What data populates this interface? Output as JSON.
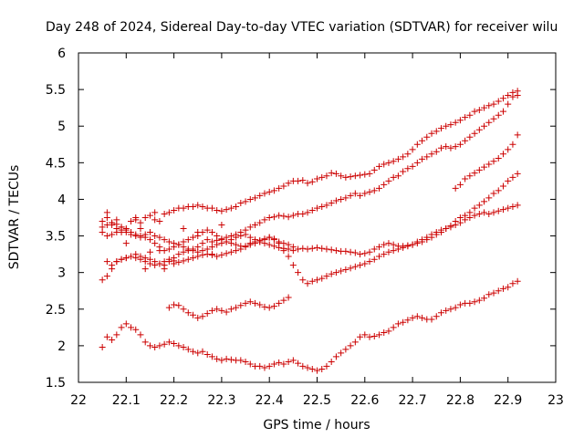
{
  "chart_data": {
    "type": "scatter",
    "title": "Day 248 of 2024, Sidereal Day-to-day VTEC variation (SDTVAR) for receiver wilu",
    "xlabel": "GPS time / hours",
    "ylabel": "SDTVAR / TECUs",
    "xlim": [
      22,
      23
    ],
    "ylim": [
      1.5,
      6
    ],
    "xticks": [
      "22",
      "22.1",
      "22.2",
      "22.3",
      "22.4",
      "22.5",
      "22.6",
      "22.7",
      "22.8",
      "22.9",
      "23"
    ],
    "yticks": [
      "1.5",
      "2",
      "2.5",
      "3",
      "3.5",
      "4",
      "4.5",
      "5",
      "5.5",
      "6"
    ],
    "grid": false,
    "marker_color": "#cc0000",
    "series": [
      {
        "x": [
          22.05,
          22.06,
          22.07,
          22.08,
          22.09,
          22.1,
          22.11,
          22.12,
          22.13,
          22.14,
          22.15,
          22.16,
          22.17,
          22.18,
          22.19,
          22.2,
          22.21,
          22.22,
          22.23,
          22.24,
          22.25,
          22.26,
          22.27,
          22.28,
          22.29,
          22.3,
          22.31,
          22.32,
          22.33,
          22.34,
          22.35,
          22.36,
          22.37,
          22.38,
          22.39,
          22.4,
          22.41,
          22.42,
          22.43,
          22.44,
          22.45,
          22.46,
          22.47,
          22.48,
          22.49,
          22.5,
          22.51,
          22.52,
          22.53,
          22.54,
          22.55,
          22.56,
          22.57,
          22.58,
          22.59,
          22.6,
          22.61,
          22.62,
          22.63,
          22.64,
          22.65,
          22.66,
          22.67,
          22.68,
          22.69,
          22.7,
          22.71,
          22.72,
          22.73,
          22.74,
          22.75,
          22.76,
          22.77,
          22.78,
          22.79,
          22.8,
          22.81,
          22.82,
          22.83,
          22.84,
          22.85,
          22.86,
          22.87,
          22.88,
          22.89,
          22.9,
          22.91,
          22.92
        ],
        "y": [
          3.7,
          3.75,
          3.65,
          3.6,
          3.55,
          3.6,
          3.7,
          3.72,
          3.68,
          3.75,
          3.78,
          3.72,
          3.7,
          3.8,
          3.82,
          3.85,
          3.88,
          3.88,
          3.9,
          3.9,
          3.92,
          3.9,
          3.88,
          3.88,
          3.85,
          3.84,
          3.86,
          3.88,
          3.9,
          3.95,
          3.97,
          4.0,
          4.02,
          4.05,
          4.08,
          4.1,
          4.12,
          4.15,
          4.18,
          4.22,
          4.25,
          4.25,
          4.26,
          4.22,
          4.24,
          4.28,
          4.3,
          4.32,
          4.36,
          4.35,
          4.32,
          4.3,
          4.31,
          4.32,
          4.33,
          4.34,
          4.35,
          4.4,
          4.45,
          4.48,
          4.5,
          4.52,
          4.55,
          4.58,
          4.62,
          4.68,
          4.75,
          4.8,
          4.85,
          4.9,
          4.93,
          4.97,
          5.0,
          5.02,
          5.05,
          5.08,
          5.12,
          5.15,
          5.2,
          5.22,
          5.25,
          5.28,
          5.3,
          5.34,
          5.38,
          5.42,
          5.46,
          5.48
        ]
      },
      {
        "x": [
          22.06,
          22.07,
          22.08,
          22.09,
          22.1,
          22.11,
          22.12,
          22.13,
          22.14,
          22.15,
          22.16,
          22.17,
          22.18,
          22.19,
          22.2,
          22.21,
          22.22,
          22.23,
          22.24,
          22.25,
          22.26,
          22.27,
          22.28,
          22.29,
          22.3,
          22.31,
          22.32,
          22.33,
          22.34,
          22.35,
          22.36,
          22.37,
          22.38,
          22.39,
          22.4,
          22.41,
          22.42,
          22.43,
          22.44,
          22.45,
          22.46,
          22.47,
          22.48,
          22.49,
          22.5,
          22.51,
          22.52,
          22.53,
          22.54,
          22.55,
          22.56,
          22.57,
          22.58,
          22.59,
          22.6,
          22.61,
          22.62,
          22.63,
          22.64,
          22.65,
          22.66,
          22.67,
          22.68,
          22.69,
          22.7,
          22.71,
          22.72,
          22.73,
          22.74,
          22.75,
          22.76,
          22.77,
          22.78,
          22.79,
          22.8,
          22.81,
          22.82,
          22.83,
          22.84,
          22.85,
          22.86,
          22.87,
          22.88,
          22.89,
          22.9,
          22.91,
          22.92
        ],
        "y": [
          3.15,
          3.1,
          3.15,
          3.18,
          3.2,
          3.22,
          3.25,
          3.22,
          3.2,
          3.18,
          3.15,
          3.12,
          3.1,
          3.15,
          3.2,
          3.25,
          3.28,
          3.3,
          3.32,
          3.35,
          3.4,
          3.45,
          3.42,
          3.44,
          3.46,
          3.48,
          3.5,
          3.52,
          3.55,
          3.58,
          3.62,
          3.65,
          3.68,
          3.72,
          3.75,
          3.76,
          3.78,
          3.77,
          3.76,
          3.78,
          3.8,
          3.8,
          3.82,
          3.85,
          3.88,
          3.9,
          3.92,
          3.95,
          3.98,
          4.0,
          4.02,
          4.05,
          4.08,
          4.05,
          4.08,
          4.1,
          4.12,
          4.15,
          4.2,
          4.25,
          4.3,
          4.32,
          4.38,
          4.42,
          4.45,
          4.5,
          4.55,
          4.58,
          4.62,
          4.65,
          4.7,
          4.72,
          4.7,
          4.72,
          4.75,
          4.8,
          4.85,
          4.9,
          4.95,
          5.0,
          5.05,
          5.1,
          5.15,
          5.2,
          5.3,
          5.4,
          5.42
        ]
      },
      {
        "x": [
          22.79,
          22.8,
          22.81,
          22.82,
          22.83,
          22.84,
          22.85,
          22.86,
          22.87,
          22.88,
          22.89,
          22.9,
          22.91,
          22.92
        ],
        "y": [
          4.15,
          4.2,
          4.28,
          4.32,
          4.36,
          4.4,
          4.44,
          4.48,
          4.52,
          4.56,
          4.62,
          4.68,
          4.75,
          4.88
        ]
      },
      {
        "x": [
          22.05,
          22.06,
          22.07,
          22.08,
          22.09,
          22.1,
          22.11,
          22.12,
          22.13,
          22.14,
          22.15,
          22.16,
          22.17,
          22.18,
          22.19,
          22.2,
          22.21,
          22.22,
          22.23,
          22.24,
          22.25,
          22.26,
          22.27,
          22.28,
          22.29,
          22.3,
          22.31,
          22.32,
          22.33,
          22.34,
          22.35,
          22.36,
          22.37,
          22.38,
          22.39,
          22.4,
          22.41,
          22.42,
          22.43,
          22.44,
          22.45,
          22.46,
          22.47,
          22.48,
          22.49,
          22.5,
          22.51,
          22.52,
          22.53,
          22.54,
          22.55,
          22.56,
          22.57,
          22.58,
          22.59,
          22.6,
          22.61,
          22.62,
          22.63,
          22.64,
          22.65,
          22.66,
          22.67,
          22.68,
          22.69,
          22.7,
          22.71,
          22.72,
          22.73,
          22.74,
          22.75,
          22.76,
          22.77,
          22.78,
          22.79,
          22.8,
          22.81,
          22.82,
          22.83,
          22.84,
          22.85,
          22.86,
          22.87,
          22.88,
          22.89,
          22.9,
          22.91,
          22.92
        ],
        "y": [
          3.62,
          3.65,
          3.68,
          3.66,
          3.62,
          3.58,
          3.55,
          3.52,
          3.5,
          3.48,
          3.45,
          3.4,
          3.35,
          3.3,
          3.32,
          3.35,
          3.38,
          3.42,
          3.45,
          3.48,
          3.5,
          3.55,
          3.58,
          3.55,
          3.5,
          3.45,
          3.42,
          3.4,
          3.38,
          3.36,
          3.35,
          3.38,
          3.4,
          3.42,
          3.4,
          3.38,
          3.36,
          3.34,
          3.33,
          3.32,
          3.3,
          3.32,
          3.33,
          3.32,
          3.33,
          3.34,
          3.33,
          3.32,
          3.31,
          3.3,
          3.29,
          3.29,
          3.28,
          3.27,
          3.25,
          3.26,
          3.28,
          3.32,
          3.35,
          3.38,
          3.4,
          3.38,
          3.36,
          3.36,
          3.37,
          3.38,
          3.4,
          3.42,
          3.45,
          3.48,
          3.52,
          3.55,
          3.6,
          3.64,
          3.7,
          3.75,
          3.78,
          3.82,
          3.88,
          3.92,
          3.97,
          4.02,
          4.08,
          4.12,
          4.18,
          4.25,
          4.3,
          4.35
        ]
      },
      {
        "x": [
          22.05,
          22.06,
          22.07,
          22.08,
          22.09,
          22.1,
          22.11,
          22.12,
          22.13,
          22.14,
          22.15,
          22.16,
          22.17,
          22.18,
          22.19,
          22.2,
          22.21,
          22.22,
          22.23,
          22.24,
          22.25,
          22.26,
          22.27,
          22.28,
          22.29,
          22.3,
          22.31,
          22.32,
          22.33,
          22.34,
          22.35,
          22.36,
          22.37,
          22.38,
          22.39,
          22.4,
          22.41,
          22.42,
          22.43,
          22.44,
          22.45
        ],
        "y": [
          3.55,
          3.5,
          3.52,
          3.55,
          3.58,
          3.55,
          3.52,
          3.5,
          3.48,
          3.52,
          3.55,
          3.5,
          3.48,
          3.45,
          3.42,
          3.4,
          3.38,
          3.35,
          3.32,
          3.3,
          3.28,
          3.3,
          3.32,
          3.35,
          3.38,
          3.4,
          3.42,
          3.45,
          3.48,
          3.5,
          3.52,
          3.48,
          3.45,
          3.42,
          3.45,
          3.48,
          3.45,
          3.42,
          3.4,
          3.38,
          3.35
        ]
      },
      {
        "x": [
          22.05,
          22.06,
          22.07,
          22.08,
          22.09,
          22.1,
          22.11,
          22.12,
          22.13,
          22.14,
          22.15,
          22.16,
          22.17,
          22.18,
          22.19,
          22.2,
          22.21,
          22.22,
          22.23,
          22.24,
          22.25,
          22.26,
          22.27,
          22.28,
          22.29,
          22.3,
          22.31,
          22.32,
          22.33,
          22.34,
          22.35,
          22.36,
          22.37,
          22.38,
          22.39,
          22.4,
          22.41,
          22.42,
          22.43,
          22.44,
          22.45,
          22.46,
          22.47,
          22.48,
          22.49,
          22.5,
          22.51,
          22.52,
          22.53,
          22.54,
          22.55,
          22.56,
          22.57,
          22.58,
          22.59,
          22.6,
          22.61,
          22.62,
          22.63,
          22.64,
          22.65,
          22.66,
          22.67,
          22.68,
          22.69,
          22.7,
          22.71,
          22.72,
          22.73,
          22.74,
          22.75,
          22.76,
          22.77,
          22.78,
          22.79,
          22.8,
          22.81,
          22.82,
          22.83,
          22.84,
          22.85,
          22.86,
          22.87,
          22.88,
          22.89,
          22.9,
          22.91,
          22.92
        ],
        "y": [
          2.9,
          2.95,
          3.05,
          3.15,
          3.18,
          3.2,
          3.22,
          3.2,
          3.18,
          3.15,
          3.12,
          3.1,
          3.12,
          3.15,
          3.18,
          3.16,
          3.14,
          3.16,
          3.18,
          3.2,
          3.22,
          3.24,
          3.25,
          3.24,
          3.22,
          3.24,
          3.26,
          3.28,
          3.3,
          3.32,
          3.36,
          3.4,
          3.42,
          3.44,
          3.46,
          3.48,
          3.46,
          3.4,
          3.3,
          3.22,
          3.1,
          3.0,
          2.9,
          2.85,
          2.88,
          2.9,
          2.92,
          2.95,
          2.98,
          3.0,
          3.02,
          3.04,
          3.06,
          3.08,
          3.1,
          3.12,
          3.15,
          3.18,
          3.22,
          3.25,
          3.28,
          3.3,
          3.32,
          3.34,
          3.36,
          3.38,
          3.42,
          3.45,
          3.48,
          3.52,
          3.55,
          3.58,
          3.6,
          3.62,
          3.65,
          3.68,
          3.72,
          3.75,
          3.78,
          3.8,
          3.82,
          3.8,
          3.82,
          3.84,
          3.86,
          3.88,
          3.9,
          3.92
        ]
      },
      {
        "x": [
          22.19,
          22.2,
          22.21,
          22.22,
          22.23,
          22.24,
          22.25,
          22.26,
          22.27,
          22.28,
          22.29,
          22.3,
          22.31,
          22.32,
          22.33,
          22.34,
          22.35,
          22.36,
          22.37,
          22.38,
          22.39,
          22.4,
          22.41,
          22.42,
          22.43,
          22.44
        ],
        "y": [
          2.52,
          2.56,
          2.55,
          2.5,
          2.45,
          2.42,
          2.38,
          2.4,
          2.44,
          2.48,
          2.5,
          2.48,
          2.46,
          2.5,
          2.52,
          2.55,
          2.58,
          2.6,
          2.58,
          2.56,
          2.53,
          2.52,
          2.54,
          2.58,
          2.62,
          2.66
        ]
      },
      {
        "x": [
          22.05,
          22.06,
          22.07,
          22.08,
          22.09,
          22.1,
          22.11,
          22.12,
          22.13,
          22.14,
          22.15,
          22.16,
          22.17,
          22.18,
          22.19,
          22.2,
          22.21,
          22.22,
          22.23,
          22.24,
          22.25,
          22.26,
          22.27,
          22.28,
          22.29,
          22.3,
          22.31,
          22.32,
          22.33,
          22.34,
          22.35,
          22.36,
          22.37,
          22.38,
          22.39,
          22.4,
          22.41,
          22.42,
          22.43,
          22.44,
          22.45,
          22.46,
          22.47,
          22.48,
          22.49,
          22.5,
          22.51,
          22.52,
          22.53,
          22.54,
          22.55,
          22.56,
          22.57,
          22.58,
          22.59,
          22.6,
          22.61,
          22.62,
          22.63,
          22.64,
          22.65,
          22.66,
          22.67,
          22.68,
          22.69,
          22.7,
          22.71,
          22.72,
          22.73,
          22.74,
          22.75,
          22.76,
          22.77,
          22.78,
          22.79,
          22.8,
          22.81,
          22.82,
          22.83,
          22.84,
          22.85,
          22.86,
          22.87,
          22.88,
          22.89,
          22.9,
          22.91,
          22.92
        ],
        "y": [
          1.98,
          2.12,
          2.08,
          2.15,
          2.25,
          2.3,
          2.25,
          2.22,
          2.15,
          2.05,
          2.0,
          1.98,
          2.0,
          2.02,
          2.05,
          2.03,
          2.0,
          1.98,
          1.95,
          1.92,
          1.9,
          1.92,
          1.88,
          1.85,
          1.82,
          1.8,
          1.82,
          1.81,
          1.8,
          1.8,
          1.78,
          1.75,
          1.72,
          1.72,
          1.7,
          1.72,
          1.75,
          1.77,
          1.75,
          1.78,
          1.8,
          1.76,
          1.72,
          1.7,
          1.68,
          1.66,
          1.68,
          1.72,
          1.78,
          1.85,
          1.9,
          1.95,
          2.0,
          2.05,
          2.12,
          2.15,
          2.12,
          2.13,
          2.15,
          2.18,
          2.2,
          2.25,
          2.3,
          2.32,
          2.35,
          2.38,
          2.4,
          2.38,
          2.36,
          2.36,
          2.4,
          2.45,
          2.48,
          2.5,
          2.52,
          2.56,
          2.58,
          2.58,
          2.6,
          2.62,
          2.65,
          2.7,
          2.72,
          2.75,
          2.78,
          2.8,
          2.85,
          2.88
        ]
      },
      {
        "x": [
          22.06,
          22.07,
          22.08,
          22.09,
          22.1,
          22.11,
          22.12,
          22.13,
          22.14,
          22.15,
          22.16,
          22.17,
          22.18,
          22.2,
          22.22,
          22.25,
          22.28,
          22.3
        ],
        "y": [
          3.82,
          3.68,
          3.72,
          3.62,
          3.4,
          3.55,
          3.75,
          3.6,
          3.05,
          3.28,
          3.82,
          3.3,
          3.05,
          3.12,
          3.6,
          3.55,
          3.25,
          3.65
        ]
      }
    ]
  }
}
